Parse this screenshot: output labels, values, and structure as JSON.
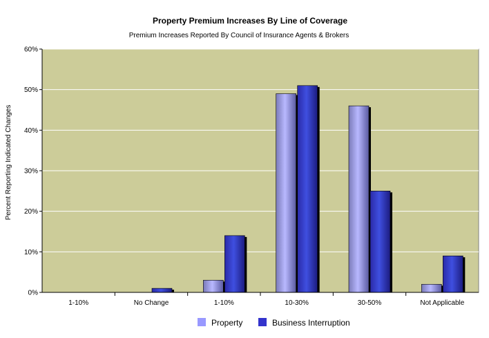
{
  "chart_data": {
    "type": "bar",
    "title": "Property Premium Increases By Line of Coverage",
    "subtitle": "Premium Increases Reported By Council of Insurance Agents & Brokers",
    "xlabel": "",
    "ylabel": "Percent Reporting Indicated Changes",
    "categories": [
      "1-10%",
      "No Change",
      "1-10%",
      "10-30%",
      "30-50%",
      "Not Applicable"
    ],
    "series": [
      {
        "name": "Property",
        "values": [
          0,
          0,
          3,
          49,
          46,
          2
        ]
      },
      {
        "name": "Business Interruption",
        "values": [
          0,
          1,
          14,
          51,
          25,
          9
        ]
      }
    ],
    "ylim": [
      0,
      60
    ],
    "yticks": [
      "0%",
      "10%",
      "20%",
      "30%",
      "40%",
      "50%",
      "60%"
    ],
    "grid": true,
    "legend": "bottom",
    "colors": {
      "plot_background": "#CCCC99",
      "property": "#9999FF",
      "business_interruption": "#3333CC",
      "gridline": "#FFFFFF"
    }
  }
}
